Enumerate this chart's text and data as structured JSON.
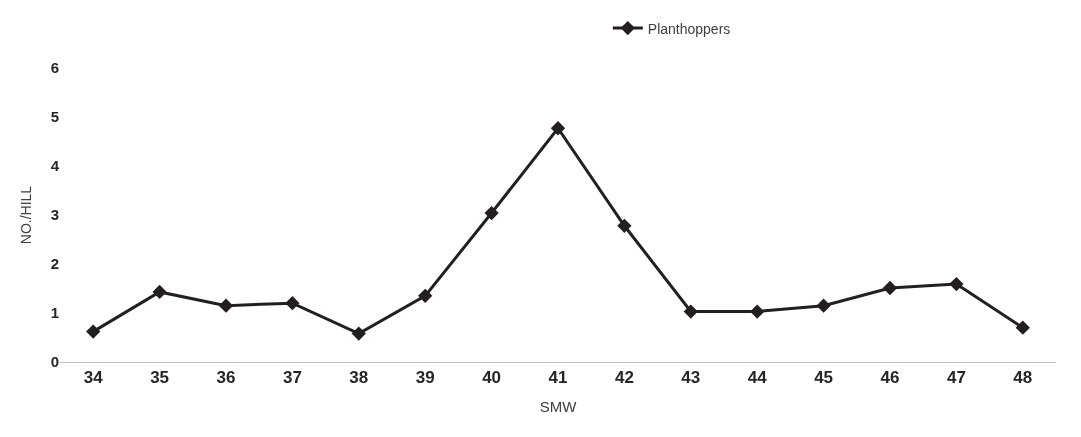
{
  "chart_data": {
    "type": "line",
    "xlabel": "SMW",
    "ylabel": "NO./HILL",
    "categories": [
      "34",
      "35",
      "36",
      "37",
      "38",
      "39",
      "40",
      "41",
      "42",
      "43",
      "44",
      "45",
      "46",
      "47",
      "48"
    ],
    "series": [
      {
        "name": "Planthoppers",
        "color": "#231f20",
        "values": [
          0.62,
          1.43,
          1.15,
          1.2,
          0.58,
          1.35,
          3.04,
          4.77,
          2.78,
          1.03,
          1.03,
          1.15,
          1.51,
          1.59,
          0.7
        ]
      }
    ],
    "ylim": [
      0,
      6
    ],
    "yticks": [
      0,
      1,
      2,
      3,
      4,
      5,
      6
    ],
    "legend": "top right",
    "marker": "diamond",
    "line_style": "solid"
  }
}
